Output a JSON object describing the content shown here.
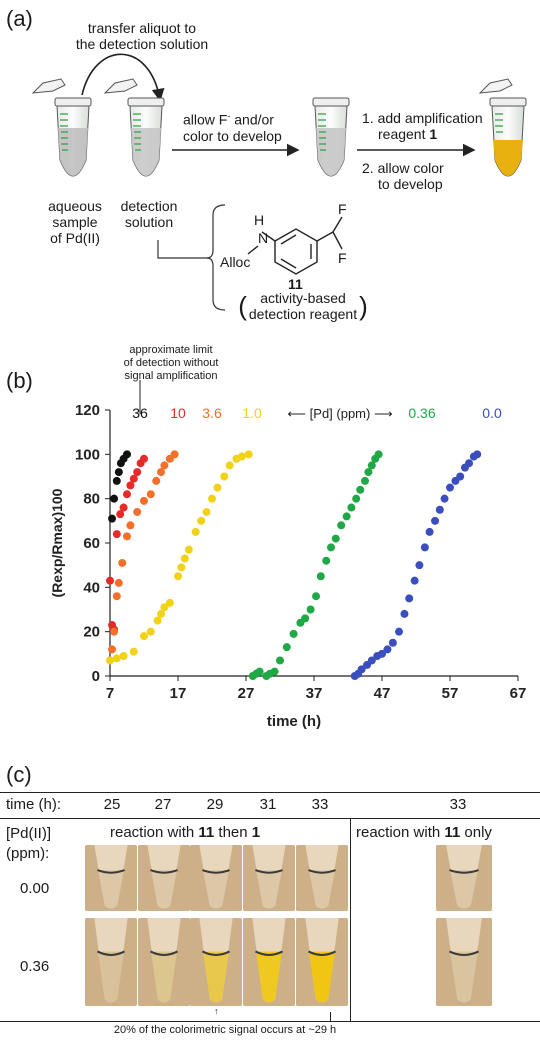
{
  "panel_a": {
    "label": "(a)",
    "transfer_line1": "transfer aliquot to",
    "transfer_line2": "the detection solution",
    "step1_line1": "allow F",
    "step1_sup": "-",
    "step1_line1b": " and/or",
    "step1_line2": "color to develop",
    "step2a_line1": "1. add amplification",
    "step2a_line2a": "reagent ",
    "step2a_line2b": "1",
    "step2b_line1": "2. allow color",
    "step2b_line2": "to develop",
    "sample_line1": "aqueous",
    "sample_line2": "sample",
    "sample_line3": "of Pd(II)",
    "detection_line1": "detection",
    "detection_line2": "solution",
    "mol_H": "H",
    "mol_N": "N",
    "mol_Alloc": "Alloc",
    "mol_F1": "F",
    "mol_F2": "F",
    "compound_number": "11",
    "reagent_line1": "activity-based",
    "reagent_line2": "detection reagent"
  },
  "panel_b": {
    "label": "(b)",
    "note_line1": "approximate limit",
    "note_line2": "of detection without",
    "note_line3": "signal amplification",
    "conc_legend_mid": "[Pd] (ppm)",
    "arrow_left": "⟵",
    "arrow_right": "⟶"
  },
  "chart_data": {
    "type": "scatter",
    "xlabel": "time (h)",
    "ylabel": "(Rexp/Rmax)100",
    "xlim": [
      7,
      67
    ],
    "ylim": [
      0,
      120
    ],
    "xticks": [
      7,
      17,
      27,
      37,
      47,
      57,
      67
    ],
    "yticks": [
      0,
      20,
      40,
      60,
      80,
      100,
      120
    ],
    "grid": false,
    "series": [
      {
        "name": "36",
        "color": "#111111",
        "points": [
          [
            7.3,
            71
          ],
          [
            7.6,
            80
          ],
          [
            8,
            88
          ],
          [
            8.3,
            92
          ],
          [
            8.6,
            96
          ],
          [
            9,
            98
          ],
          [
            9.5,
            100
          ]
        ]
      },
      {
        "name": "10",
        "color": "#e52a2a",
        "points": [
          [
            7,
            43
          ],
          [
            7.3,
            23
          ],
          [
            7.6,
            21
          ],
          [
            8,
            64
          ],
          [
            8.5,
            73
          ],
          [
            9,
            76
          ],
          [
            9.5,
            82
          ],
          [
            10,
            86
          ],
          [
            10.5,
            89
          ],
          [
            11,
            92
          ],
          [
            11.5,
            96
          ],
          [
            12,
            98
          ]
        ]
      },
      {
        "name": "3.6",
        "color": "#f36f2a",
        "points": [
          [
            7.3,
            12
          ],
          [
            7.6,
            20
          ],
          [
            8,
            36
          ],
          [
            8.3,
            42
          ],
          [
            8.8,
            51
          ],
          [
            9.5,
            63
          ],
          [
            10,
            68
          ],
          [
            11,
            74
          ],
          [
            12,
            79
          ],
          [
            13,
            82
          ],
          [
            13.8,
            88
          ],
          [
            14.5,
            92
          ],
          [
            15,
            95
          ],
          [
            15.8,
            98
          ],
          [
            16.5,
            100
          ]
        ]
      },
      {
        "name": "1.0",
        "color": "#f1d216",
        "points": [
          [
            7,
            7
          ],
          [
            8,
            8
          ],
          [
            9,
            9
          ],
          [
            10.5,
            11
          ],
          [
            12,
            18
          ],
          [
            13,
            20
          ],
          [
            14,
            25
          ],
          [
            14.5,
            28
          ],
          [
            15,
            31
          ],
          [
            15.8,
            33
          ],
          [
            17,
            45
          ],
          [
            17.5,
            49
          ],
          [
            18,
            53
          ],
          [
            18.6,
            57
          ],
          [
            19.6,
            65
          ],
          [
            20.4,
            70
          ],
          [
            21.2,
            74
          ],
          [
            22,
            80
          ],
          [
            22.8,
            85
          ],
          [
            23.8,
            90
          ],
          [
            24.6,
            95
          ],
          [
            25.6,
            98
          ],
          [
            26.4,
            99
          ],
          [
            27.4,
            100
          ]
        ]
      },
      {
        "name": "0.36",
        "color": "#1fa845",
        "points": [
          [
            28,
            0
          ],
          [
            28.5,
            1
          ],
          [
            29,
            2
          ],
          [
            30,
            0
          ],
          [
            30.5,
            1
          ],
          [
            31.2,
            2
          ],
          [
            32,
            7
          ],
          [
            33,
            13
          ],
          [
            34,
            19
          ],
          [
            35,
            24
          ],
          [
            35.7,
            26
          ],
          [
            36.5,
            30
          ],
          [
            37.3,
            36
          ],
          [
            38,
            45
          ],
          [
            38.8,
            52
          ],
          [
            39.5,
            58
          ],
          [
            40.2,
            62
          ],
          [
            41,
            68
          ],
          [
            41.8,
            72
          ],
          [
            42.5,
            76
          ],
          [
            43.2,
            80
          ],
          [
            43.8,
            84
          ],
          [
            44.5,
            88
          ],
          [
            45,
            92
          ],
          [
            45.5,
            95
          ],
          [
            46,
            98
          ],
          [
            46.5,
            100
          ]
        ]
      },
      {
        "name": "0.0",
        "color": "#3a4ebd",
        "points": [
          [
            43,
            0
          ],
          [
            43.5,
            1
          ],
          [
            44,
            3
          ],
          [
            44.8,
            5
          ],
          [
            45.5,
            7
          ],
          [
            46.3,
            9
          ],
          [
            47,
            10
          ],
          [
            47.8,
            12
          ],
          [
            48.6,
            15
          ],
          [
            49.5,
            20
          ],
          [
            50.3,
            28
          ],
          [
            51,
            35
          ],
          [
            51.8,
            43
          ],
          [
            52.5,
            50
          ],
          [
            53.3,
            58
          ],
          [
            54,
            65
          ],
          [
            54.8,
            70
          ],
          [
            55.5,
            75
          ],
          [
            56.2,
            80
          ],
          [
            57,
            85
          ],
          [
            57.8,
            88
          ],
          [
            58.5,
            90
          ],
          [
            59.2,
            94
          ],
          [
            59.8,
            96
          ],
          [
            60.5,
            99
          ],
          [
            61,
            100
          ]
        ]
      }
    ],
    "legend_labels": [
      "36",
      "10",
      "3.6",
      "1.0",
      "0.36",
      "0.0"
    ]
  },
  "panel_c": {
    "label": "(c)",
    "time_label": "time (h):",
    "times": [
      "25",
      "27",
      "29",
      "31",
      "33"
    ],
    "time_right": "33",
    "pd_label_line1": "[Pd(II)]",
    "pd_label_line2": "(ppm):",
    "row1": "0.00",
    "row2": "0.36",
    "header_left_a": "reaction with ",
    "header_left_b": "11",
    "header_left_c": " then ",
    "header_left_d": "1",
    "header_right_a": "reaction with ",
    "header_right_b": "11",
    "header_right_c": " only",
    "footnote": "20% of the colorimetric signal occurs at ~29 h"
  }
}
